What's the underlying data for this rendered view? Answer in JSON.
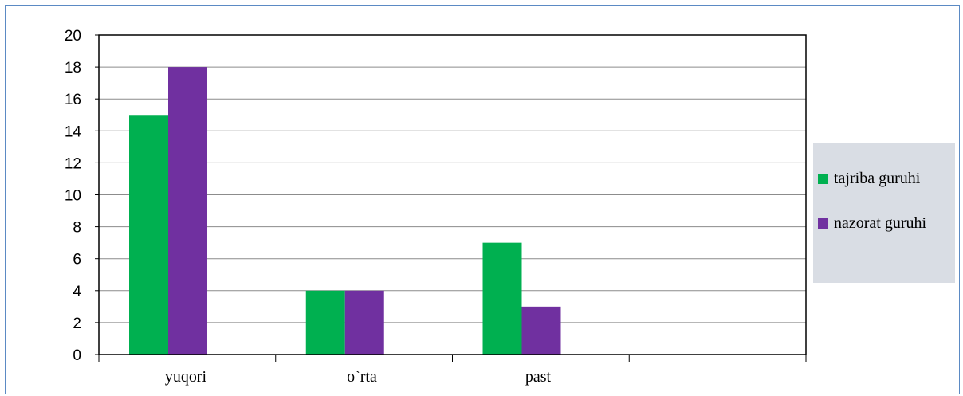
{
  "chart_data": {
    "type": "bar",
    "categories": [
      "yuqori",
      "o`rta",
      "past",
      ""
    ],
    "series": [
      {
        "name": "tajriba guruhi",
        "values": [
          15,
          4,
          7,
          null
        ],
        "color": "#00b050"
      },
      {
        "name": "nazorat guruhi",
        "values": [
          18,
          4,
          3,
          null
        ],
        "color": "#7030a0"
      }
    ],
    "ylim": [
      0,
      20
    ],
    "yticks": [
      0,
      2,
      4,
      6,
      8,
      10,
      12,
      14,
      16,
      18,
      20
    ],
    "grid": true,
    "legend_placement": "right"
  },
  "legend": {
    "items": [
      {
        "label": "tajriba guruhi",
        "color": "#00b050"
      },
      {
        "label": "nazorat guruhi",
        "color": "#7030a0"
      }
    ]
  }
}
